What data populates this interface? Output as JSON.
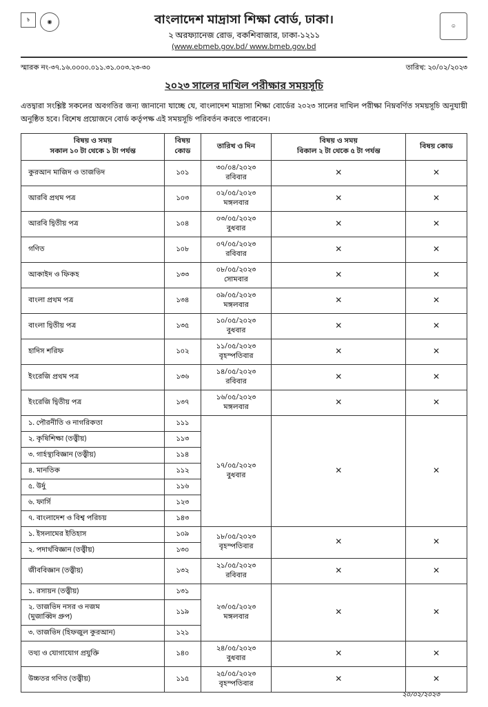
{
  "header": {
    "org_title": "বাংলাদেশ মাদ্রাসা শিক্ষা বোর্ড, ঢাকা।",
    "org_sub": "২ অরফ্যানেজ রোড, বকশিবাজার, ঢাকা-১২১১",
    "org_url": "(www.ebmeb.gov.bd/ www.bmeb.gov.bd"
  },
  "meta": {
    "ref": "স্মারক নং-৩৭.১৬.০০০০.০১১.৩১.০০৩.২৩-৩০",
    "date": "তারিখ: ২০/০২/২০২৩"
  },
  "doc_title": "২০২৩ সালের দাখিল পরীক্ষার সময়সূচি",
  "intro": "এতদ্বারা সংশ্লিষ্ট সকলের অবগতির জন্য জানানো যাচ্ছে যে, বাংলাদেশ মাদ্রাসা শিক্ষা বোর্ডের ২০২৩ সালের দাখিল পরীক্ষা নিম্নবর্ণিত সময়সূচি অনুযায়ী অনুষ্ঠিত হবে। বিশেষ প্রয়োজনে বোর্ড কর্তৃপক্ষ এই সময়সূচি পরিবর্তন করতে পারবেন।",
  "table": {
    "headers": {
      "c1a": "বিষয় ও সময়",
      "c1b": "সকাল ১০ টা থেকে ১ টা পর্যন্ত",
      "c2": "বিষয়\nকোড",
      "c3": "তারিখ ও দিন",
      "c4a": "বিষয় ও সময়",
      "c4b": "বিকাল ২ টা থেকে ৫ টা পর্যন্ত",
      "c5": "বিষয় কোড"
    },
    "x": "✕",
    "groups": [
      {
        "date": "৩০/০৪/২০২৩\nরবিবার",
        "subjects": [
          [
            "কুরআন মাজিদ ও তাজভিদ",
            "১০১"
          ]
        ]
      },
      {
        "date": "০২/০৫/২০২৩\nমঙ্গলবার",
        "subjects": [
          [
            "আরবি প্রথম পত্র",
            "১০৩"
          ]
        ]
      },
      {
        "date": "০৩/০৫/২০২৩\nবুধবার",
        "subjects": [
          [
            "আরবি দ্বিতীয় পত্র",
            "১০৪"
          ]
        ]
      },
      {
        "date": "০৭/০৫/২০২৩\nরবিবার",
        "subjects": [
          [
            "গণিত",
            "১০৮"
          ]
        ]
      },
      {
        "date": "০৮/০৫/২০২৩\nসোমবার",
        "subjects": [
          [
            "আকাইদ ও ফিকহ",
            "১৩৩"
          ]
        ]
      },
      {
        "date": "০৯/০৫/২০২৩\nমঙ্গলবার",
        "subjects": [
          [
            "বাংলা প্রথম পত্র",
            "১৩৪"
          ]
        ]
      },
      {
        "date": "১০/০৫/২০২৩\nবুধবার",
        "subjects": [
          [
            "বাংলা দ্বিতীয় পত্র",
            "১৩৫"
          ]
        ]
      },
      {
        "date": "১১/০৫/২০২৩\nবৃহস্পতিবার",
        "subjects": [
          [
            "হাদিস শরিফ",
            "১০২"
          ]
        ]
      },
      {
        "date": "১৪/০৫/২০২৩\nরবিবার",
        "subjects": [
          [
            "ইংরেজি প্রথম পত্র",
            "১৩৬"
          ]
        ]
      },
      {
        "date": "১৬/০৫/২০২৩\nমঙ্গলবার",
        "subjects": [
          [
            "ইংরেজি দ্বিতীয় পত্র",
            "১৩৭"
          ]
        ]
      },
      {
        "date": "১৭/০৫/২০২৩\nবুধবার",
        "subjects": [
          [
            "১. পৌরনীতি ও নাগরিকতা",
            "১১১"
          ],
          [
            "২. কৃষিশিক্ষা (তত্ত্বীয়)",
            "১১৩"
          ],
          [
            "৩. গার্হস্থ্যবিজ্ঞান (তত্ত্বীয়)",
            "১১৪"
          ],
          [
            "৪. মানতিক",
            "১১২"
          ],
          [
            "৫. উর্দু",
            "১১৬"
          ],
          [
            "৬. ফার্সি",
            "১২৩"
          ],
          [
            "৭. বাংলাদেশ ও বিশ্ব পরিচয়",
            "১৪৩"
          ]
        ]
      },
      {
        "date": "১৮/০৫/২০২৩\nবৃহস্পতিবার",
        "subjects": [
          [
            "১. ইসলামের ইতিহাস",
            "১০৯"
          ],
          [
            "২. পদার্থবিজ্ঞান (তত্ত্বীয়)",
            "১৩০"
          ]
        ]
      },
      {
        "date": "২১/০৫/২০২৩\nরবিবার",
        "subjects": [
          [
            "জীববিজ্ঞান (তত্ত্বীয়)",
            "১৩২"
          ]
        ]
      },
      {
        "date": "২৩/০৫/২০২৩\nমঙ্গলবার",
        "subjects": [
          [
            "১. রসায়ন (তত্ত্বীয়)",
            "১৩১"
          ],
          [
            "২. তাজভিদ নসর ও নজম\n(মুজাব্বিদ গ্রুপ)",
            "১১৯"
          ],
          [
            "৩. তাজভিদ (হিফজুল কুরআন)",
            "১২১"
          ]
        ]
      },
      {
        "date": "২৪/০৫/২০২৩\nবুধবার",
        "subjects": [
          [
            "তথ্য ও যোগাযোগ প্রযুক্তি",
            "১৪০"
          ]
        ]
      },
      {
        "date": "২৫/০৫/২০২৩\nবৃহস্পতিবার",
        "subjects": [
          [
            "উচ্চতর গণিত (তত্ত্বীয়)",
            "১১৫"
          ]
        ]
      }
    ]
  },
  "signature": "২০/০২/২০২৩"
}
